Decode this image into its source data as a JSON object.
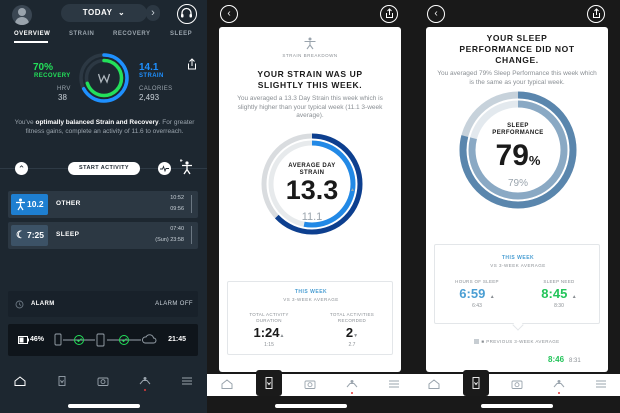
{
  "overview": {
    "header": {
      "prev": "‹",
      "date_label": "TODAY",
      "next": "›"
    },
    "tabs": [
      "OVERVIEW",
      "STRAIN",
      "RECOVERY",
      "SLEEP"
    ],
    "recovery": {
      "value": "70%",
      "label": "RECOVERY",
      "hrv_label": "HRV",
      "hrv_value": "38"
    },
    "strain": {
      "value": "14.1",
      "label": "STRAIN",
      "calories_label": "CALORIES",
      "calories_value": "2,493"
    },
    "message_prefix": "You've ",
    "message_bold": "optimally balanced Strain and Recovery",
    "message_suffix": ". For greater fitness gains, complete an activity of 11.6 to overreach.",
    "start_activity_label": "START ACTIVITY",
    "activities": [
      {
        "value": "10.2",
        "name": "OTHER",
        "time_end": "10:52",
        "time_start": "09:56",
        "color": "#1e7fd1"
      },
      {
        "value": "7:25",
        "name": "SLEEP",
        "time_end": "07:40",
        "time_start": "(Sun) 23:58",
        "color": "#3c5266"
      }
    ],
    "alarm": {
      "label": "ALARM",
      "status": "ALARM OFF"
    },
    "device": {
      "battery": "46%",
      "time": "21:45"
    },
    "accent_green": "#23e05a",
    "accent_blue": "#1e90ff"
  },
  "strain_page": {
    "kicker": "STRAIN BREAKDOWN",
    "title_line1": "YOUR STRAIN WAS UP",
    "title_line2": "SLIGHTLY THIS WEEK.",
    "description": "You averaged a 13.3 Day Strain this week which is slightly higher than your typical week (11.1 3-week average).",
    "ring_label_line1": "AVERAGE DAY",
    "ring_label_line2": "STRAIN",
    "ring_value": "13.3",
    "ring_prev": "11.1",
    "ring_fraction": 0.63,
    "ring_prev_fraction": 0.53,
    "compare_kicker": "THIS WEEK",
    "compare_sub": "VS 3-WEEK AVERAGE",
    "metrics": [
      {
        "label_line1": "TOTAL ACTIVITY",
        "label_line2": "DURATION",
        "value": "1:24",
        "prev": "1:15",
        "trend": "▲"
      },
      {
        "label_line1": "TOTAL ACTIVITIES",
        "label_line2": "RECORDED",
        "value": "2",
        "prev": "2.7",
        "trend": "▼"
      }
    ]
  },
  "sleep_page": {
    "title_line1": "YOUR SLEEP",
    "title_line2": "PERFORMANCE DID NOT",
    "title_line3": "CHANGE.",
    "description": "You averaged 79% Sleep Performance this week which is the same as your typical week.",
    "ring_label_line1": "SLEEP",
    "ring_label_line2": "PERFORMANCE",
    "ring_value": "79",
    "ring_unit": "%",
    "ring_prev": "79%",
    "ring_fraction": 0.79,
    "compare_kicker": "THIS WEEK",
    "compare_sub": "VS 3-WEEK AVERAGE",
    "metrics": [
      {
        "label": "HOURS OF SLEEP",
        "value": "6:59",
        "prev": "6:43",
        "trend": "▲",
        "color": "#4a9ed3"
      },
      {
        "label": "SLEEP NEED",
        "value": "8:45",
        "prev": "8:30",
        "trend": "▲",
        "color": "#23c45a"
      }
    ],
    "legend": "PREVIOUS 3-WEEK AVERAGE",
    "bottom_value": "8:46",
    "bottom_prev": "8:31"
  }
}
